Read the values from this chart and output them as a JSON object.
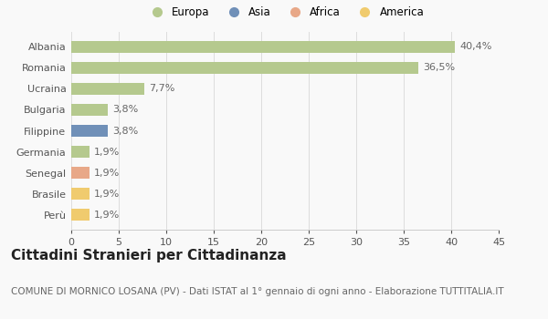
{
  "categories": [
    "Albania",
    "Romania",
    "Ucraina",
    "Bulgaria",
    "Filippine",
    "Germania",
    "Senegal",
    "Brasile",
    "Perù"
  ],
  "values": [
    40.4,
    36.5,
    7.7,
    3.8,
    3.8,
    1.9,
    1.9,
    1.9,
    1.9
  ],
  "labels": [
    "40,4%",
    "36,5%",
    "7,7%",
    "3,8%",
    "3,8%",
    "1,9%",
    "1,9%",
    "1,9%",
    "1,9%"
  ],
  "colors": [
    "#b5c98e",
    "#b5c98e",
    "#b5c98e",
    "#b5c98e",
    "#7090b8",
    "#b5c98e",
    "#e8a888",
    "#f0cb6e",
    "#f0cb6e"
  ],
  "legend": [
    {
      "label": "Europa",
      "color": "#b5c98e"
    },
    {
      "label": "Asia",
      "color": "#7090b8"
    },
    {
      "label": "Africa",
      "color": "#e8a888"
    },
    {
      "label": "America",
      "color": "#f0cb6e"
    }
  ],
  "xlim": [
    0,
    45
  ],
  "xticks": [
    0,
    5,
    10,
    15,
    20,
    25,
    30,
    35,
    40,
    45
  ],
  "title": "Cittadini Stranieri per Cittadinanza",
  "subtitle": "COMUNE DI MORNICO LOSANA (PV) - Dati ISTAT al 1° gennaio di ogni anno - Elaborazione TUTTITALIA.IT",
  "background_color": "#f9f9f9",
  "bar_height": 0.55,
  "title_fontsize": 11,
  "subtitle_fontsize": 7.5,
  "label_fontsize": 8,
  "tick_fontsize": 8,
  "legend_fontsize": 8.5
}
